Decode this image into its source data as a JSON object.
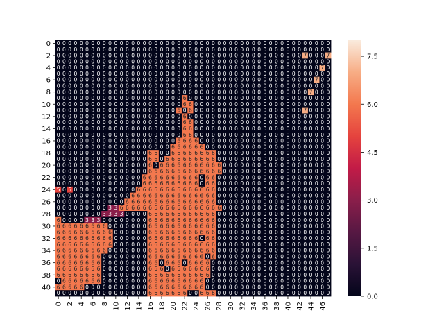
{
  "chart_data": {
    "type": "heatmap",
    "title": "",
    "xlabel": "",
    "ylabel": "",
    "n_rows": 42,
    "n_cols": 48,
    "x_tick_labels": [
      "0",
      "2",
      "4",
      "6",
      "8",
      "10",
      "12",
      "14",
      "16",
      "18",
      "20",
      "22",
      "24",
      "26",
      "28",
      "30",
      "32",
      "34",
      "36",
      "38",
      "40",
      "42",
      "44",
      "46"
    ],
    "y_tick_labels": [
      "0",
      "2",
      "4",
      "6",
      "8",
      "10",
      "12",
      "14",
      "16",
      "18",
      "20",
      "22",
      "24",
      "26",
      "28",
      "30",
      "32",
      "34",
      "36",
      "38",
      "40"
    ],
    "colorbar": {
      "vmin": 0,
      "vmax": 8,
      "tick_labels": [
        "0.0",
        "1.5",
        "3.0",
        "4.5",
        "6.0",
        "7.5"
      ],
      "colormap": "rocket"
    },
    "annotate_cells": true,
    "default_value": 0,
    "value_runs": [
      {
        "row": 2,
        "cols": [
          43
        ],
        "value": 7
      },
      {
        "row": 2,
        "cols": [
          47
        ],
        "value": 7
      },
      {
        "row": 4,
        "cols": [
          46
        ],
        "value": 7
      },
      {
        "row": 6,
        "cols": [
          45
        ],
        "value": 7
      },
      {
        "row": 8,
        "cols": [
          44
        ],
        "value": 7
      },
      {
        "row": 9,
        "col_range": [
          22,
          22
        ],
        "value": 6
      },
      {
        "row": 10,
        "col_range": [
          22,
          23
        ],
        "value": 6
      },
      {
        "row": 11,
        "cols": [
          21,
          23
        ],
        "value": 6
      },
      {
        "row": 11,
        "cols": [
          43
        ],
        "value": 7
      },
      {
        "row": 12,
        "col_range": [
          22,
          22
        ],
        "value": 6
      },
      {
        "row": 13,
        "col_range": [
          22,
          23
        ],
        "value": 6
      },
      {
        "row": 14,
        "col_range": [
          22,
          23
        ],
        "value": 6
      },
      {
        "row": 15,
        "col_range": [
          22,
          23
        ],
        "value": 6
      },
      {
        "row": 16,
        "col_range": [
          21,
          24
        ],
        "value": 6
      },
      {
        "row": 17,
        "col_range": [
          20,
          25
        ],
        "value": 6
      },
      {
        "row": 18,
        "col_range": [
          16,
          17
        ],
        "value": 6
      },
      {
        "row": 18,
        "col_range": [
          20,
          27
        ],
        "value": 6
      },
      {
        "row": 19,
        "col_range": [
          16,
          17
        ],
        "value": 6
      },
      {
        "row": 19,
        "col_range": [
          19,
          27
        ],
        "value": 6
      },
      {
        "row": 20,
        "col_range": [
          16,
          28
        ],
        "value": 6
      },
      {
        "row": 21,
        "col_range": [
          16,
          28
        ],
        "value": 6
      },
      {
        "row": 22,
        "col_range": [
          15,
          27
        ],
        "value": 6
      },
      {
        "row": 23,
        "col_range": [
          15,
          27
        ],
        "value": 6
      },
      {
        "row": 24,
        "col_range": [
          0,
          0
        ],
        "value": 5
      },
      {
        "row": 24,
        "col_range": [
          2,
          2
        ],
        "value": 5
      },
      {
        "row": 24,
        "col_range": [
          14,
          27
        ],
        "value": 6
      },
      {
        "row": 25,
        "col_range": [
          13,
          27
        ],
        "value": 6
      },
      {
        "row": 26,
        "col_range": [
          12,
          27
        ],
        "value": 6
      },
      {
        "row": 27,
        "col_range": [
          9,
          10
        ],
        "value": 3
      },
      {
        "row": 27,
        "col_range": [
          11,
          28
        ],
        "value": 6
      },
      {
        "row": 28,
        "col_range": [
          8,
          11
        ],
        "value": 3
      },
      {
        "row": 28,
        "col_range": [
          16,
          27
        ],
        "value": 6
      },
      {
        "row": 29,
        "col_range": [
          5,
          7
        ],
        "value": 3
      },
      {
        "row": 29,
        "col_range": [
          0,
          0
        ],
        "value": 6
      },
      {
        "row": 29,
        "col_range": [
          16,
          27
        ],
        "value": 6
      },
      {
        "row": 30,
        "col_range": [
          0,
          8
        ],
        "value": 6
      },
      {
        "row": 30,
        "col_range": [
          16,
          27
        ],
        "value": 6
      },
      {
        "row": 31,
        "col_range": [
          0,
          9
        ],
        "value": 6
      },
      {
        "row": 31,
        "col_range": [
          16,
          27
        ],
        "value": 6
      },
      {
        "row": 32,
        "col_range": [
          0,
          9
        ],
        "value": 6
      },
      {
        "row": 32,
        "col_range": [
          16,
          27
        ],
        "value": 6
      },
      {
        "row": 33,
        "col_range": [
          0,
          9
        ],
        "value": 6
      },
      {
        "row": 33,
        "col_range": [
          16,
          27
        ],
        "value": 6
      },
      {
        "row": 34,
        "col_range": [
          0,
          8
        ],
        "value": 6
      },
      {
        "row": 34,
        "col_range": [
          16,
          27
        ],
        "value": 6
      },
      {
        "row": 35,
        "col_range": [
          0,
          7
        ],
        "value": 6
      },
      {
        "row": 35,
        "col_range": [
          16,
          27
        ],
        "value": 6
      },
      {
        "row": 36,
        "col_range": [
          0,
          7
        ],
        "value": 6
      },
      {
        "row": 36,
        "col_range": [
          16,
          26
        ],
        "value": 6
      },
      {
        "row": 37,
        "col_range": [
          0,
          7
        ],
        "value": 6
      },
      {
        "row": 37,
        "col_range": [
          16,
          26
        ],
        "value": 6
      },
      {
        "row": 38,
        "col_range": [
          0,
          7
        ],
        "value": 6
      },
      {
        "row": 38,
        "col_range": [
          16,
          26
        ],
        "value": 6
      },
      {
        "row": 39,
        "col_range": [
          1,
          7
        ],
        "value": 6
      },
      {
        "row": 39,
        "col_range": [
          16,
          25
        ],
        "value": 6
      },
      {
        "row": 40,
        "col_range": [
          0,
          4
        ],
        "value": 6
      },
      {
        "row": 40,
        "col_range": [
          16,
          25
        ],
        "value": 6
      },
      {
        "row": 41,
        "col_range": [
          16,
          22
        ],
        "value": 6
      },
      {
        "row": 41,
        "col_range": [
          25,
          27
        ],
        "value": 6
      }
    ],
    "zero_holes": [
      {
        "row": 19,
        "cols": [
          18
        ]
      },
      {
        "row": 20,
        "cols": [
          17
        ]
      },
      {
        "row": 22,
        "cols": [
          25
        ]
      },
      {
        "row": 23,
        "cols": [
          25
        ]
      },
      {
        "row": 32,
        "cols": [
          25
        ]
      },
      {
        "row": 36,
        "cols": [
          22
        ]
      },
      {
        "row": 36,
        "cols": [
          18
        ]
      },
      {
        "row": 37,
        "cols": [
          19
        ]
      },
      {
        "row": 35,
        "cols": [
          26
        ]
      }
    ]
  }
}
